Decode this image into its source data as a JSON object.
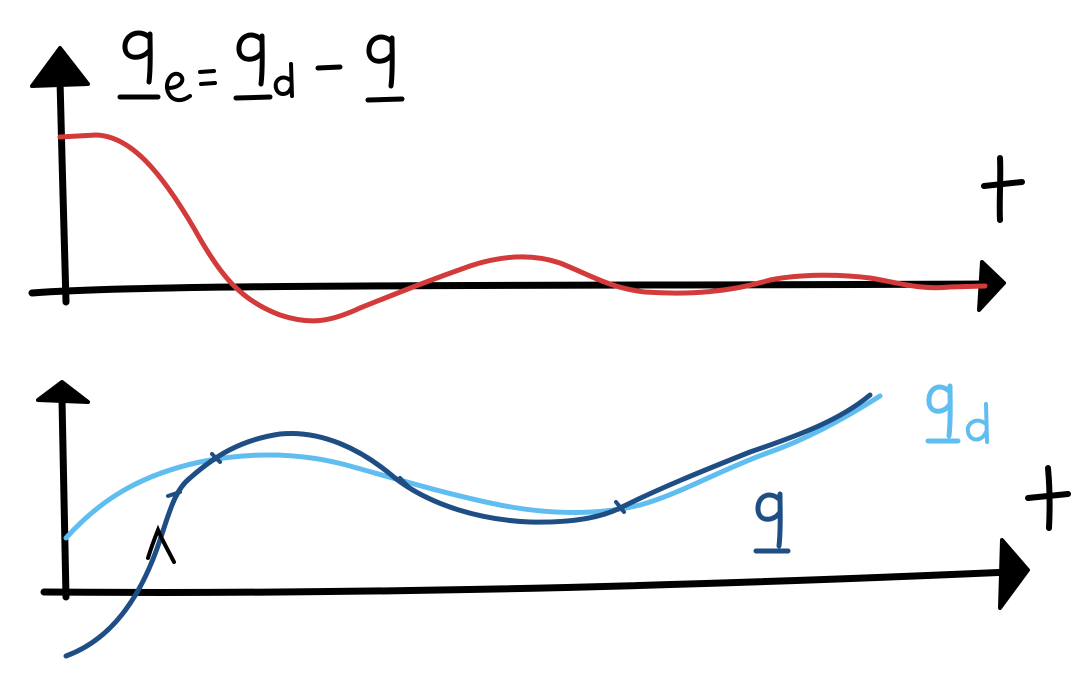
{
  "top_plot": {
    "equation": {
      "lhs_symbol": "q",
      "lhs_subscript": "e",
      "equals": "=",
      "rhs1_symbol": "q",
      "rhs1_subscript": "d",
      "minus": "−",
      "rhs2_symbol": "q"
    },
    "axis_label": "t",
    "curve_color": "#d33b3b",
    "curve_name": "error-curve"
  },
  "bottom_plot": {
    "axis_label": "t",
    "desired_label_symbol": "q",
    "desired_label_subscript": "d",
    "actual_label_symbol": "q",
    "desired_color": "#5fbdf0",
    "actual_color": "#1f4e85"
  },
  "colors": {
    "axis": "#000000",
    "error": "#d33b3b",
    "desired": "#5fbdf0",
    "actual": "#1f4e85"
  }
}
